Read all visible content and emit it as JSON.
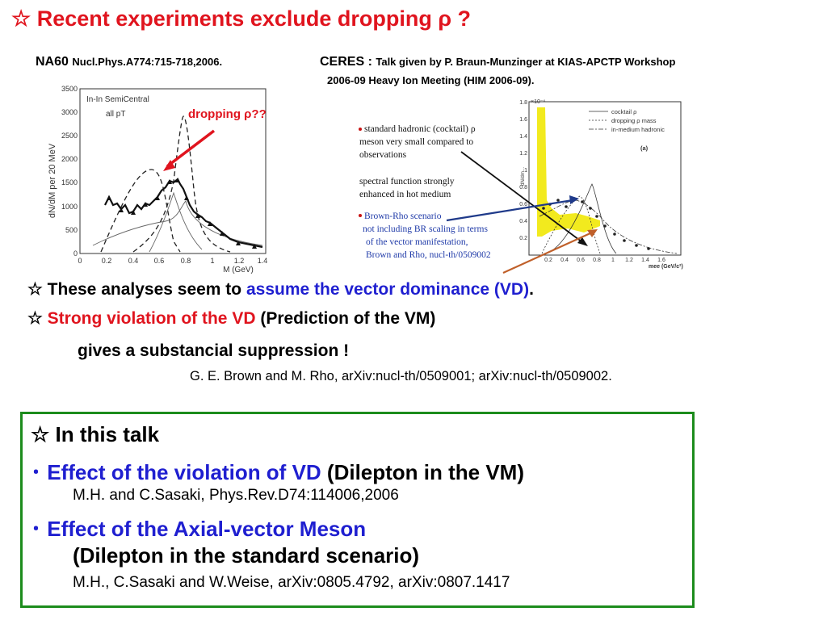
{
  "slide": {
    "title": "☆ Recent experiments exclude dropping ρ ?",
    "na60": {
      "label": "NA60",
      "ref": "Nucl.Phys.A774:715-718,2006."
    },
    "ceres": {
      "label": "CERES :",
      "ref": "Talk given by P. Braun-Munzinger at KIAS-APCTP Workshop",
      "ref2": "2006-09 Heavy Ion Meeting (HIM 2006-09)."
    },
    "na60_plot": {
      "ylabel": "dN/dM per 20 MeV",
      "xlabel": "M (GeV)",
      "legend_line1": "In-In SemiCentral",
      "legend_line2": "all pT",
      "annotation": "dropping ρ??",
      "yticks": [
        "0",
        "500",
        "1000",
        "1500",
        "2000",
        "2500",
        "3000",
        "3500"
      ],
      "xticks": [
        "0",
        "0.2",
        "0.4",
        "0.6",
        "0.8",
        "1",
        "1.2",
        "1.4"
      ]
    },
    "ceres_plot": {
      "note1": "standard hadronic (cocktail) ρ",
      "note1b": "meson very small compared to",
      "note1c": "observations",
      "note2": "spectral function strongly",
      "note2b": "enhanced in hot medium",
      "note3": "Brown-Rho scenario",
      "note3b": "not including BR scaling in terms",
      "note3c": "of the vector manifestation,",
      "note3d": "Brown and Rho, nucl-th/0509002",
      "legend": [
        "cocktail ρ",
        "dropping ρ mass",
        "in-medium hadronic"
      ],
      "panel": "(a)",
      "top_label": "×10⁻⁶",
      "yticks": [
        "0.2",
        "0.4",
        "0.6",
        "0.8",
        "1",
        "1.2",
        "1.4",
        "1.6",
        "1.8"
      ],
      "xticks": [
        "0.2",
        "0.4",
        "0.6",
        "0.8",
        "1",
        "1.2",
        "1.4",
        "1.6"
      ],
      "xlabel": "mee (GeV/c²)"
    },
    "line1_a": "☆ These analyses seem to ",
    "line1_b": "assume the vector dominance (VD)",
    "line1_c": ".",
    "line2_a": "☆ ",
    "line2_b": "Strong violation of the VD",
    "line2_c": " (Prediction of the VM)",
    "line3": "gives a substancial suppression !",
    "ref_brown_rho": "G. E. Brown and M. Rho, arXiv:nucl-th/0509001; arXiv:nucl-th/0509002.",
    "talk": {
      "heading": "☆ In this talk",
      "bullet1_dot": "･",
      "bullet1_blue": " Effect of the violation of VD",
      "bullet1_black": " (Dilepton in the VM)",
      "ref1": "M.H. and C.Sasaki, Phys.Rev.D74:114006,2006",
      "bullet2_dot": "･",
      "bullet2_blue": " Effect of the Axial-vector Meson",
      "bullet2_line2": "(Dilepton in the standard scenario)",
      "ref2": "M.H., C.Sasaki and W.Weise, arXiv:0805.4792, arXiv:0807.1417"
    }
  }
}
